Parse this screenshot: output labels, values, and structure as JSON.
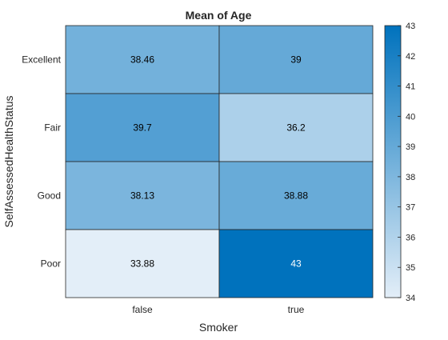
{
  "chart_data": {
    "type": "heatmap",
    "title": "Mean of Age",
    "xlabel": "Smoker",
    "ylabel": "SelfAssessedHealthStatus",
    "x_categories": [
      "false",
      "true"
    ],
    "y_categories": [
      "Excellent",
      "Fair",
      "Good",
      "Poor"
    ],
    "cell_labels": [
      [
        "38.46",
        "39"
      ],
      [
        "39.7",
        "36.2"
      ],
      [
        "38.13",
        "38.88"
      ],
      [
        "33.88",
        "43"
      ]
    ],
    "values": [
      [
        38.46,
        39
      ],
      [
        39.7,
        36.2
      ],
      [
        38.13,
        38.88
      ],
      [
        33.88,
        43
      ]
    ],
    "colorbar": {
      "min": 34,
      "max": 43,
      "ticks": [
        "34",
        "35",
        "36",
        "37",
        "38",
        "39",
        "40",
        "41",
        "42",
        "43"
      ],
      "color_low": "#e3eef8",
      "color_high": "#0072bd"
    },
    "grid": true,
    "legend": "colorbar-right"
  }
}
